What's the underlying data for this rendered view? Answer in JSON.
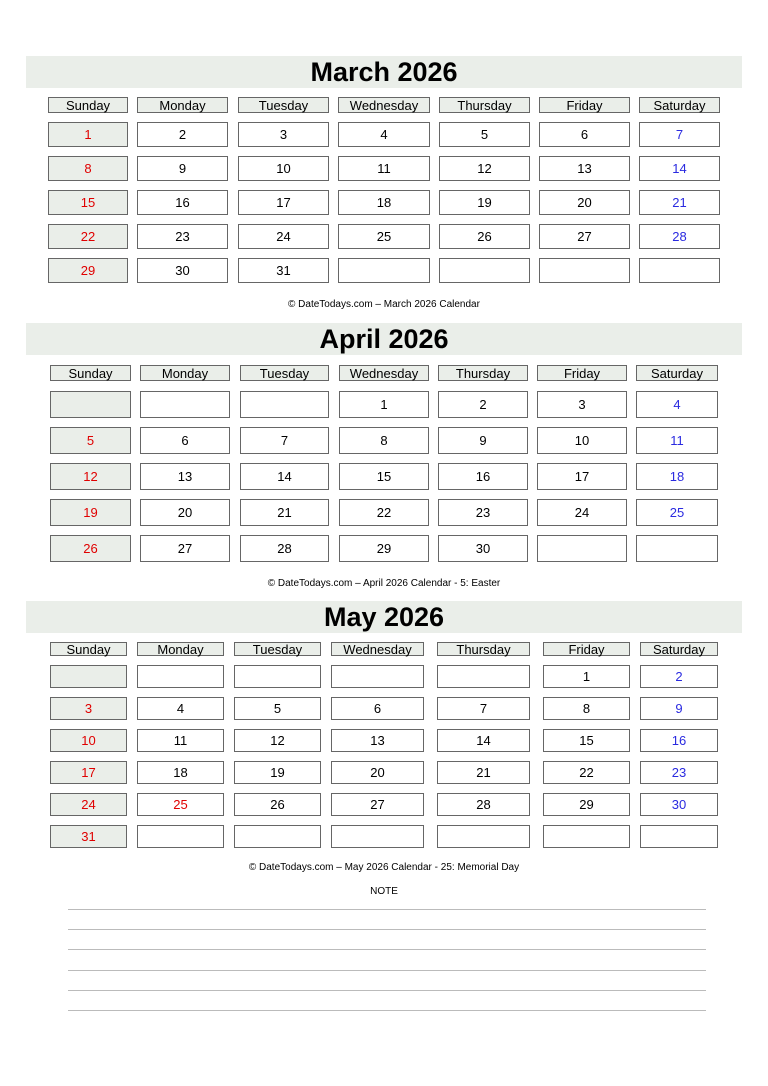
{
  "weekdays": [
    "Sunday",
    "Monday",
    "Tuesday",
    "Wednesday",
    "Thursday",
    "Friday",
    "Saturday"
  ],
  "colors": {
    "sunday": "#e00000",
    "saturday": "#2a2ae0",
    "header_bg": "#eaeee9"
  },
  "months": [
    {
      "title": "March 2026",
      "footer": "© DateTodays.com – March 2026 Calendar",
      "holidays": [],
      "weeks": [
        [
          "1",
          "2",
          "3",
          "4",
          "5",
          "6",
          "7"
        ],
        [
          "8",
          "9",
          "10",
          "11",
          "12",
          "13",
          "14"
        ],
        [
          "15",
          "16",
          "17",
          "18",
          "19",
          "20",
          "21"
        ],
        [
          "22",
          "23",
          "24",
          "25",
          "26",
          "27",
          "28"
        ],
        [
          "29",
          "30",
          "31",
          "",
          "",
          "",
          ""
        ]
      ]
    },
    {
      "title": "April 2026",
      "footer": "© DateTodays.com – April 2026 Calendar - 5: Easter",
      "holidays": [
        "5"
      ],
      "weeks": [
        [
          "",
          "",
          "",
          "1",
          "2",
          "3",
          "4"
        ],
        [
          "5",
          "6",
          "7",
          "8",
          "9",
          "10",
          "11"
        ],
        [
          "12",
          "13",
          "14",
          "15",
          "16",
          "17",
          "18"
        ],
        [
          "19",
          "20",
          "21",
          "22",
          "23",
          "24",
          "25"
        ],
        [
          "26",
          "27",
          "28",
          "29",
          "30",
          "",
          ""
        ]
      ]
    },
    {
      "title": "May 2026",
      "footer": "© DateTodays.com – May 2026 Calendar - 25: Memorial Day",
      "holidays": [
        "25"
      ],
      "weeks": [
        [
          "",
          "",
          "",
          "",
          "",
          "1",
          "2"
        ],
        [
          "3",
          "4",
          "5",
          "6",
          "7",
          "8",
          "9"
        ],
        [
          "10",
          "11",
          "12",
          "13",
          "14",
          "15",
          "16"
        ],
        [
          "17",
          "18",
          "19",
          "20",
          "21",
          "22",
          "23"
        ],
        [
          "24",
          "25",
          "26",
          "27",
          "28",
          "29",
          "30"
        ],
        [
          "31",
          "",
          "",
          "",
          "",
          "",
          ""
        ]
      ]
    }
  ],
  "note": {
    "label": "NOTE",
    "line_count": 6
  }
}
